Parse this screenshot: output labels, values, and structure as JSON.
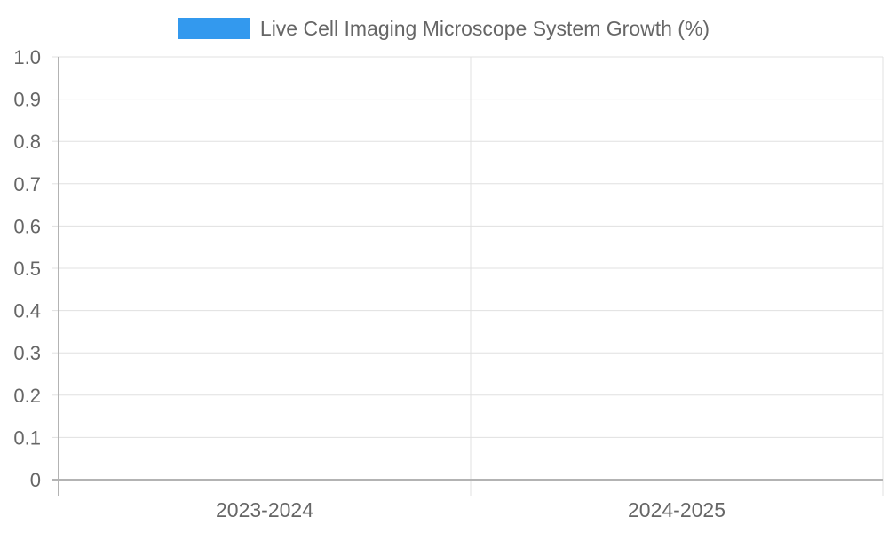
{
  "chart_data": {
    "type": "bar",
    "categories": [
      "2023-2024",
      "2024-2025"
    ],
    "series": [
      {
        "name": "Live Cell Imaging Microscope System Growth (%)",
        "values": [
          null,
          null
        ]
      }
    ],
    "ylim": [
      0,
      1
    ],
    "yticks": [
      "0",
      "0.1",
      "0.2",
      "0.3",
      "0.4",
      "0.5",
      "0.6",
      "0.7",
      "0.8",
      "0.9",
      "1.0"
    ],
    "grid": true,
    "legend_position": "top-center",
    "title": "",
    "xlabel": "",
    "ylabel": ""
  },
  "colors": {
    "series": "#3399ee",
    "grid": "#e0e0e0",
    "axis": "#b3b3b3",
    "text": "#666666"
  }
}
